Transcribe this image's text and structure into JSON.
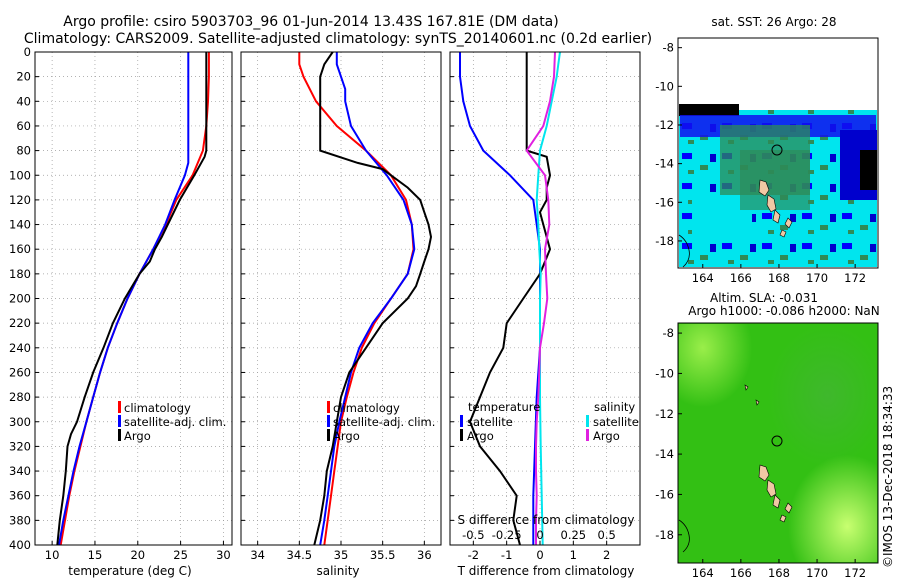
{
  "header": {
    "title_line1": "Argo profile: csiro 5903703_96 01-Jun-2014 13.43S 167.81E (DM data)",
    "title_line2": "Climatology: CARS2009. Satellite-adjusted climatology: synTS_20140601.nc (0.2d earlier)"
  },
  "map_titles": {
    "sst": "sat. SST: 26 Argo: 28",
    "sla_line1": "Altim. SLA: -0.031",
    "sla_line2": "Argo h1000: -0.086 h2000: NaN"
  },
  "credit": "©IMOS 13-Dec-2018 18:34:33",
  "colors": {
    "climatology": "#ff0000",
    "satellite": "#0000ff",
    "argo": "#000000",
    "sal_satellite": "#00e5ee",
    "sal_argo": "#e020e0"
  },
  "chart_data": [
    {
      "type": "line",
      "name": "temperature",
      "xlabel": "temperature (deg C)",
      "ylabel": "",
      "xlim": [
        8,
        31
      ],
      "ylim": [
        400,
        0
      ],
      "xticks": [
        "10",
        "15",
        "20",
        "25",
        "30"
      ],
      "xtick_values": [
        10,
        15,
        20,
        25,
        30
      ],
      "yticks": [
        "0",
        "20",
        "40",
        "60",
        "80",
        "100",
        "120",
        "140",
        "160",
        "180",
        "200",
        "220",
        "240",
        "260",
        "280",
        "300",
        "320",
        "340",
        "360",
        "380",
        "400"
      ],
      "legend": [
        "climatology",
        "satellite-adj. clim.",
        "Argo"
      ],
      "series": [
        {
          "name": "climatology",
          "depth": [
            0,
            20,
            40,
            60,
            80,
            100,
            120,
            140,
            160,
            180,
            200,
            220,
            240,
            260,
            280,
            300,
            320,
            340,
            360,
            380,
            400
          ],
          "values": [
            28.3,
            28.3,
            28.2,
            28.0,
            27.6,
            26.4,
            24.5,
            23.3,
            21.8,
            20.2,
            18.8,
            17.6,
            16.5,
            15.6,
            14.8,
            14.0,
            13.3,
            12.6,
            12.0,
            11.5,
            11.0
          ]
        },
        {
          "name": "satellite-adj. clim.",
          "depth": [
            0,
            20,
            40,
            60,
            80,
            90,
            100,
            120,
            140,
            160,
            180,
            200,
            220,
            240,
            260,
            280,
            300,
            320,
            340,
            360,
            380,
            400
          ],
          "values": [
            25.9,
            25.9,
            25.9,
            25.9,
            25.9,
            25.9,
            25.5,
            24.3,
            23.2,
            21.8,
            20.2,
            18.8,
            17.6,
            16.5,
            15.6,
            14.8,
            14.0,
            13.2,
            12.5,
            11.9,
            11.3,
            10.8
          ]
        },
        {
          "name": "Argo",
          "depth": [
            0,
            20,
            40,
            60,
            80,
            85,
            100,
            120,
            140,
            150,
            160,
            170,
            180,
            200,
            220,
            240,
            260,
            280,
            300,
            310,
            320,
            340,
            360,
            380,
            400
          ],
          "values": [
            28.0,
            28.0,
            28.0,
            28.0,
            28.0,
            27.8,
            26.6,
            24.9,
            23.5,
            22.8,
            22.0,
            21.4,
            20.2,
            18.5,
            17.1,
            16.0,
            14.8,
            13.8,
            12.9,
            12.2,
            11.8,
            11.6,
            11.3,
            10.9,
            10.6
          ]
        }
      ]
    },
    {
      "type": "line",
      "name": "salinity",
      "xlabel": "salinity",
      "xlim": [
        33.8,
        36.2
      ],
      "ylim": [
        400,
        0
      ],
      "xticks": [
        "34",
        "34.5",
        "35",
        "35.5",
        "36"
      ],
      "xtick_values": [
        34,
        34.5,
        35,
        35.5,
        36
      ],
      "legend": [
        "climatology",
        "satellite-adj. clim.",
        "Argo"
      ],
      "series": [
        {
          "name": "climatology",
          "depth": [
            0,
            10,
            20,
            40,
            60,
            80,
            100,
            120,
            140,
            160,
            180,
            200,
            220,
            240,
            260,
            280,
            300,
            320,
            340,
            360,
            380,
            400
          ],
          "values": [
            34.5,
            34.5,
            34.55,
            34.7,
            34.95,
            35.3,
            35.6,
            35.78,
            35.85,
            35.87,
            35.8,
            35.6,
            35.4,
            35.25,
            35.15,
            35.07,
            35.0,
            34.96,
            34.92,
            34.88,
            34.84,
            34.8
          ]
        },
        {
          "name": "satellite-adj. clim.",
          "depth": [
            0,
            10,
            20,
            30,
            40,
            60,
            80,
            100,
            120,
            140,
            160,
            180,
            200,
            220,
            240,
            260,
            280,
            300,
            320,
            340,
            360,
            380,
            400
          ],
          "values": [
            34.95,
            34.95,
            35.0,
            35.05,
            35.05,
            35.12,
            35.3,
            35.55,
            35.75,
            35.85,
            35.88,
            35.8,
            35.6,
            35.38,
            35.22,
            35.12,
            35.05,
            34.98,
            34.92,
            34.88,
            34.84,
            34.8,
            34.75
          ]
        },
        {
          "name": "Argo",
          "depth": [
            0,
            10,
            20,
            40,
            60,
            80,
            90,
            95,
            100,
            110,
            120,
            130,
            140,
            150,
            160,
            170,
            180,
            190,
            200,
            220,
            240,
            260,
            280,
            300,
            320,
            340,
            360,
            380,
            400
          ],
          "values": [
            34.9,
            34.8,
            34.75,
            34.75,
            34.75,
            34.75,
            35.2,
            35.5,
            35.6,
            35.8,
            35.95,
            36.0,
            36.05,
            36.08,
            36.05,
            36.0,
            35.95,
            35.9,
            35.8,
            35.5,
            35.3,
            35.1,
            35.0,
            34.95,
            34.9,
            34.83,
            34.8,
            34.75,
            34.68
          ]
        }
      ]
    },
    {
      "type": "line",
      "name": "difference from climatology",
      "xlabel": "T difference from climatology",
      "xlabel_top": "S difference from climatology",
      "xlim": [
        -2.7,
        3.0
      ],
      "ylim": [
        400,
        0
      ],
      "xticks": [
        "-2",
        "-1",
        "0",
        "1",
        "2"
      ],
      "xtick_values": [
        -2,
        -1,
        0,
        1,
        2
      ],
      "s_xticks": [
        "-0.5",
        "-0.25",
        "0",
        "0.25",
        "0.5"
      ],
      "s_xtick_values": [
        -0.5,
        -0.25,
        0,
        0.25,
        0.5
      ],
      "legend_temperature_title": "temperature",
      "legend_salinity_title": "salinity",
      "legend": [
        "satellite",
        "Argo",
        "satellite",
        "Argo"
      ],
      "series": [
        {
          "name": "temperature satellite",
          "depth": [
            0,
            20,
            40,
            60,
            80,
            100,
            120,
            140,
            160,
            200,
            240,
            280,
            320,
            360,
            400
          ],
          "values": [
            -2.4,
            -2.4,
            -2.3,
            -2.1,
            -1.7,
            -0.9,
            -0.2,
            -0.1,
            0,
            0,
            0,
            -0.1,
            -0.15,
            -0.2,
            -0.2
          ]
        },
        {
          "name": "temperature Argo",
          "depth": [
            0,
            20,
            40,
            60,
            80,
            85,
            100,
            110,
            120,
            130,
            140,
            160,
            180,
            200,
            220,
            240,
            260,
            280,
            300,
            320,
            340,
            360,
            380,
            400
          ],
          "values": [
            -0.4,
            -0.4,
            -0.4,
            -0.4,
            -0.4,
            0.2,
            0.3,
            0.2,
            0.2,
            0,
            0.1,
            0.3,
            0,
            -0.5,
            -1.0,
            -1.1,
            -1.5,
            -1.8,
            -2.1,
            -1.8,
            -1.2,
            -0.7,
            -0.8,
            -0.6
          ]
        },
        {
          "name": "salinity satellite",
          "depth": [
            0,
            10,
            20,
            40,
            60,
            80,
            100,
            120,
            140,
            160,
            180,
            200,
            240,
            280,
            320,
            360,
            400
          ],
          "values": [
            0.6,
            0.55,
            0.5,
            0.35,
            0.2,
            0.0,
            -0.05,
            -0.1,
            -0.05,
            -0.02,
            0.02,
            0,
            0,
            0,
            0.02,
            0.05,
            0.08
          ]
        },
        {
          "name": "salinity Argo",
          "depth": [
            0,
            20,
            40,
            60,
            80,
            100,
            120,
            140,
            160,
            180,
            200,
            220,
            240,
            260,
            280,
            300,
            320,
            340,
            360,
            380,
            400
          ],
          "values": [
            0.45,
            0.42,
            0.3,
            0.1,
            -0.4,
            0.15,
            0.25,
            0.28,
            0.15,
            0.18,
            0.22,
            0.12,
            0.0,
            -0.02,
            -0.05,
            -0.1,
            -0.12,
            -0.12,
            -0.1,
            -0.12,
            -0.12
          ]
        }
      ]
    },
    {
      "type": "heatmap",
      "name": "sat. SST map",
      "xticks": [
        "164",
        "166",
        "168",
        "170",
        "172"
      ],
      "xtick_values": [
        164,
        166,
        168,
        170,
        172
      ],
      "yticks": [
        "-8",
        "-10",
        "-12",
        "-14",
        "-16",
        "-18"
      ],
      "ytick_values": [
        -8,
        -10,
        -12,
        -14,
        -16,
        -18
      ],
      "xlim": [
        162.7,
        173.2
      ],
      "ylim": [
        -19.4,
        -7.5
      ],
      "argo_position": [
        167.81,
        -13.43
      ]
    },
    {
      "type": "heatmap",
      "name": "altimeter SLA map",
      "xticks": [
        "164",
        "166",
        "168",
        "170",
        "172"
      ],
      "xtick_values": [
        164,
        166,
        168,
        170,
        172
      ],
      "yticks": [
        "-8",
        "-10",
        "-12",
        "-14",
        "-16",
        "-18"
      ],
      "ytick_values": [
        -8,
        -10,
        -12,
        -14,
        -16,
        -18
      ],
      "xlim": [
        162.7,
        173.2
      ],
      "ylim": [
        -19.4,
        -7.5
      ],
      "argo_position": [
        167.81,
        -13.43
      ]
    }
  ]
}
